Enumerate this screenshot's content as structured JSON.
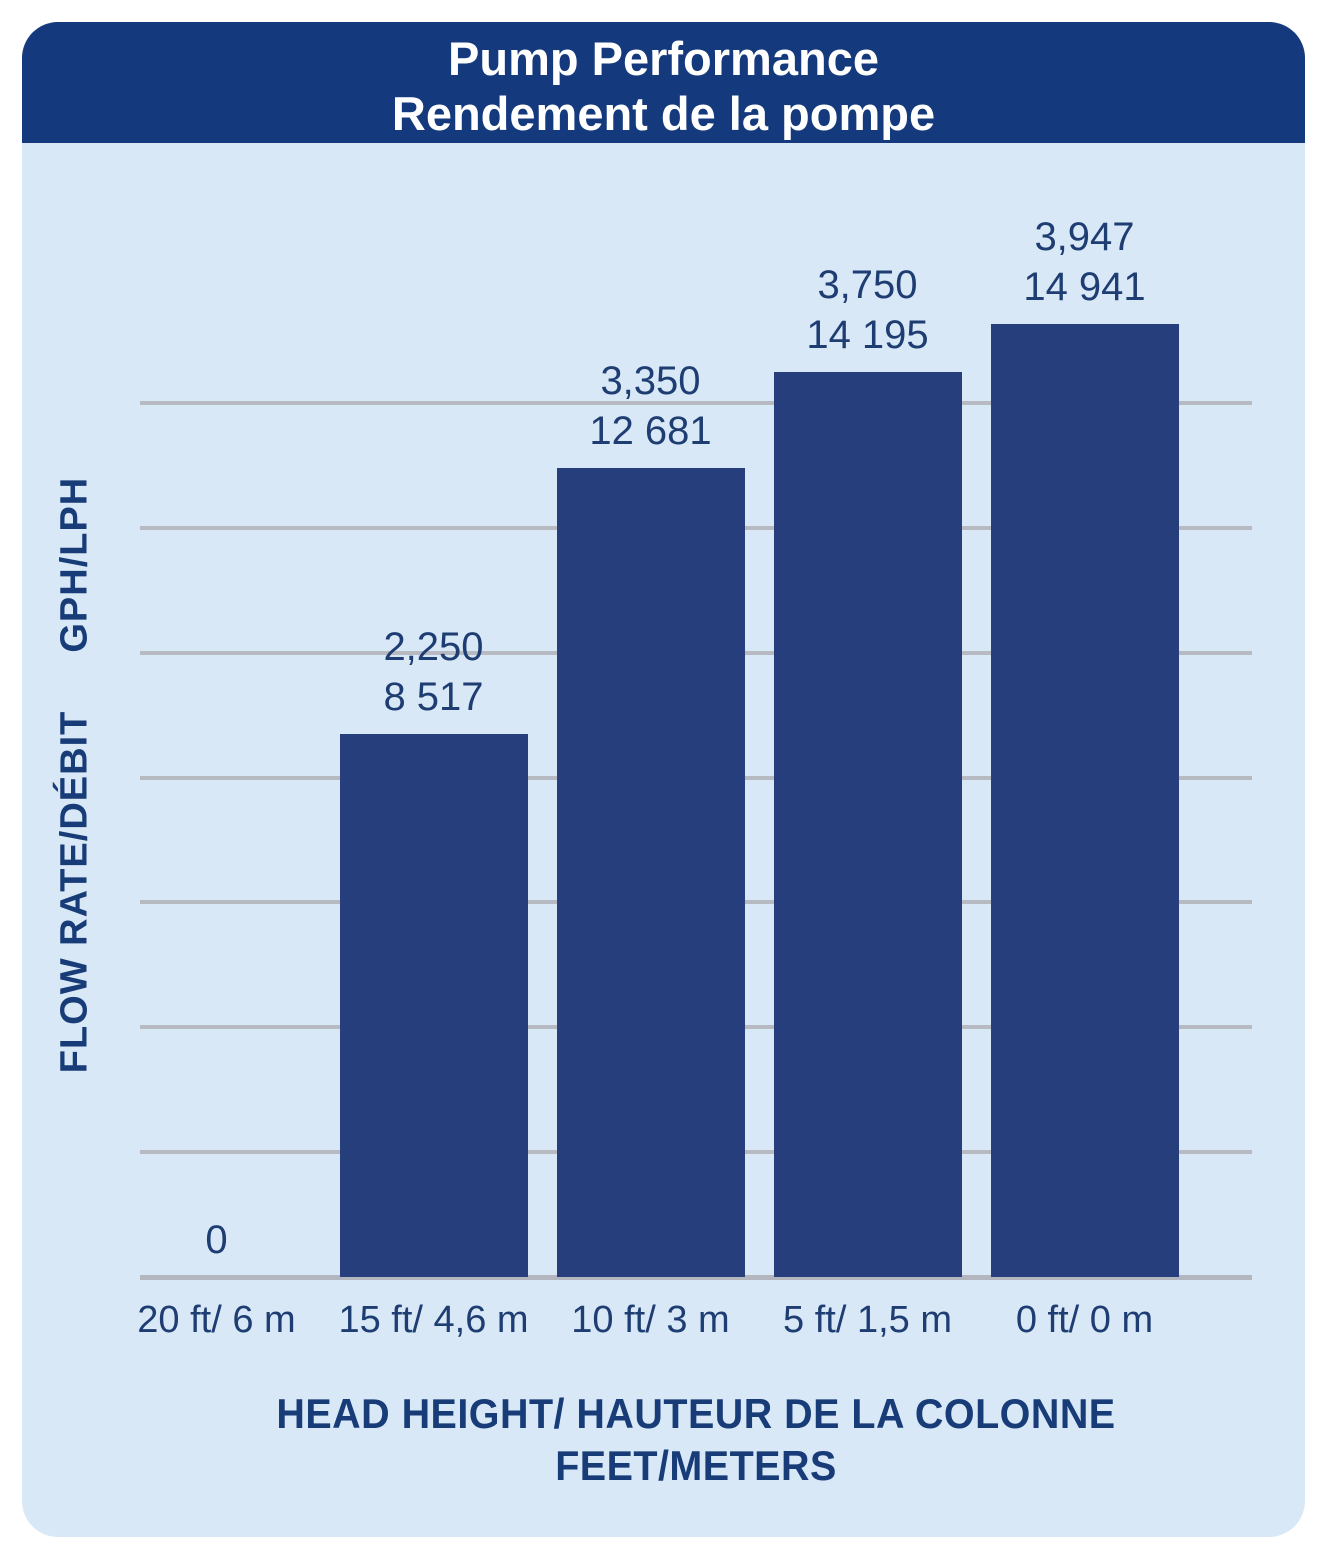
{
  "title": {
    "line1": "Pump Performance",
    "line2": "Rendement de la pompe"
  },
  "chart_data": {
    "type": "bar",
    "title": "Pump Performance / Rendement de la pompe",
    "categories": [
      "20 ft/ 6 m",
      "15 ft/ 4,6 m",
      "10 ft/ 3 m",
      "5 ft/ 1,5 m",
      "0 ft/ 0 m"
    ],
    "series": [
      {
        "name": "GPH",
        "values": [
          0,
          2250,
          3350,
          3750,
          3947
        ]
      },
      {
        "name": "LPH",
        "values": [
          0,
          8517,
          12681,
          14195,
          14941
        ]
      }
    ],
    "bar_labels": [
      {
        "gph": "0",
        "lph": ""
      },
      {
        "gph": "2,250",
        "lph": "8 517"
      },
      {
        "gph": "3,350",
        "lph": "12 681"
      },
      {
        "gph": "3,750",
        "lph": "14 195"
      },
      {
        "gph": "3,947",
        "lph": "14 941"
      }
    ],
    "xlabel_line1": "HEAD HEIGHT/ HAUTEUR DE LA COLONNE",
    "xlabel_line2": "FEET/METERS",
    "ylabel_line1": "FLOW RATE/DÉBIT",
    "ylabel_line2": "GPH/LPH",
    "ylim": [
      0,
      3620
    ],
    "gridline_count": 7,
    "grid": true,
    "legend": "none",
    "colors": {
      "header": "#14397d",
      "panel": "#d9e8f7",
      "bar": "#263e7c",
      "value_text": "#1e3d72",
      "axis_title_text": "#173c77",
      "grid": "#b7bac1",
      "title_text": "#ffffff"
    }
  }
}
